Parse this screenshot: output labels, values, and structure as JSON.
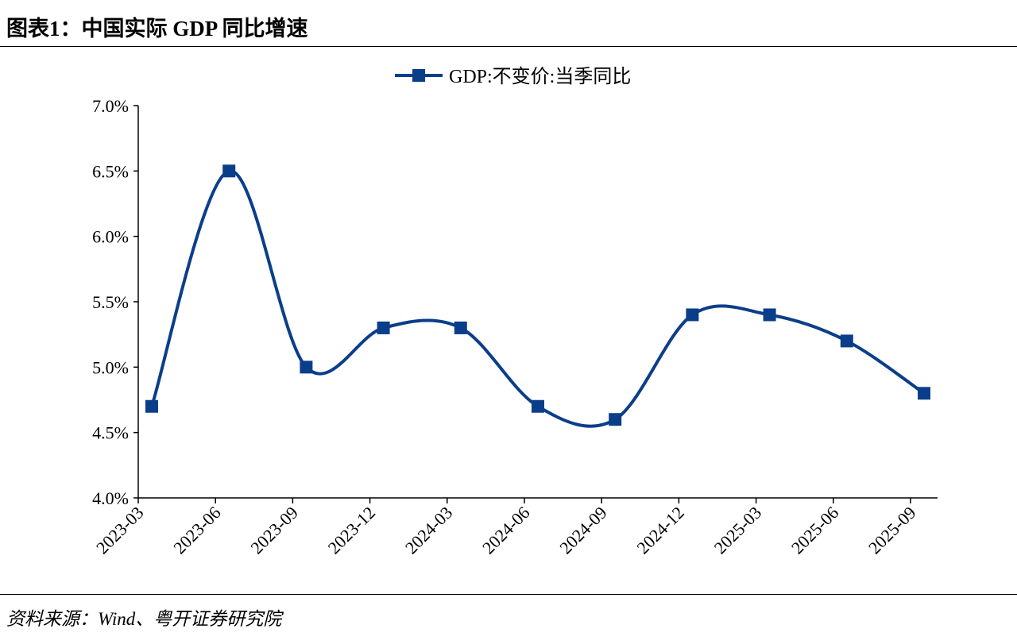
{
  "header": {
    "title": "图表1：中国实际 GDP 同比增速"
  },
  "footer": {
    "source": "资料来源：Wind、粤开证券研究院"
  },
  "chart_data": {
    "type": "line",
    "smooth": true,
    "marker": "square",
    "color": "#0B3E8A",
    "categories": [
      "2023-03",
      "2023-06",
      "2023-09",
      "2023-12",
      "2024-03",
      "2024-06",
      "2024-09",
      "2024-12",
      "2025-03",
      "2025-06",
      "2025-09"
    ],
    "series": [
      {
        "name": "GDP:不变价:当季同比",
        "values": [
          4.7,
          6.5,
          5.0,
          5.3,
          5.3,
          4.7,
          4.6,
          5.4,
          5.4,
          5.2,
          4.8
        ]
      }
    ],
    "ylim": [
      4.0,
      7.0
    ],
    "yticks": [
      "4.0%",
      "4.5%",
      "5.0%",
      "5.5%",
      "6.0%",
      "6.5%",
      "7.0%"
    ],
    "grid": false,
    "legend": "top-center"
  }
}
